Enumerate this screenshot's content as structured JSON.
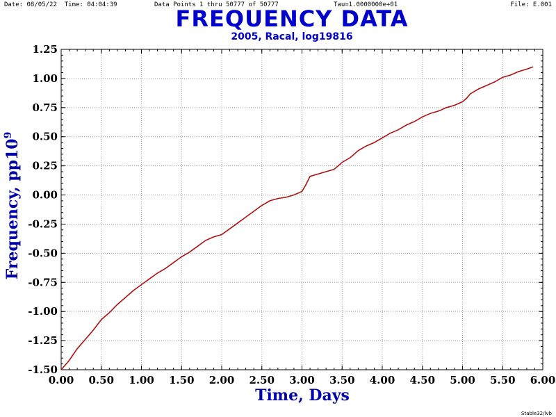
{
  "header": {
    "date": "Date: 08/05/22",
    "time": "Time: 04:04:39",
    "points": "Data Points 1 thru 50777 of 50777",
    "tau": "Tau=1.0000000e+01",
    "file": "File: E.001"
  },
  "footer": "Stable32/lvb",
  "chart_data": {
    "type": "line",
    "title": "FREQUENCY DATA",
    "subtitle": "2005, Racal, log19816",
    "xlabel": "Time, Days",
    "ylabel_base": "Frequency, pp10",
    "ylabel_sup": "9",
    "xlim": [
      0,
      6
    ],
    "ylim": [
      -1.5,
      1.25
    ],
    "grid": true,
    "x_ticks": [
      "0.00",
      "0.50",
      "1.00",
      "1.50",
      "2.00",
      "2.50",
      "3.00",
      "3.50",
      "4.00",
      "4.50",
      "5.00",
      "5.50",
      "6.00"
    ],
    "y_ticks": [
      "1.25",
      "1.00",
      "0.75",
      "0.50",
      "0.25",
      "0.00",
      "-0.25",
      "-0.50",
      "-0.75",
      "-1.00",
      "-1.25",
      "-1.50"
    ],
    "line_color": "#b01010",
    "series": [
      {
        "x": [
          0.0,
          0.1,
          0.2,
          0.3,
          0.4,
          0.5,
          0.6,
          0.7,
          0.8,
          0.9,
          1.0,
          1.1,
          1.2,
          1.3,
          1.4,
          1.5,
          1.6,
          1.7,
          1.8,
          1.9,
          2.0,
          2.1,
          2.2,
          2.3,
          2.4,
          2.5,
          2.6,
          2.7,
          2.8,
          2.9,
          3.0,
          3.05,
          3.1,
          3.2,
          3.3,
          3.4,
          3.5,
          3.6,
          3.7,
          3.8,
          3.9,
          4.0,
          4.1,
          4.2,
          4.3,
          4.4,
          4.5,
          4.6,
          4.7,
          4.8,
          4.9,
          5.0,
          5.05,
          5.1,
          5.2,
          5.3,
          5.4,
          5.5,
          5.6,
          5.7,
          5.8,
          5.88
        ],
        "values": [
          -1.5,
          -1.42,
          -1.32,
          -1.24,
          -1.16,
          -1.07,
          -1.01,
          -0.94,
          -0.88,
          -0.82,
          -0.77,
          -0.72,
          -0.67,
          -0.63,
          -0.58,
          -0.53,
          -0.49,
          -0.44,
          -0.39,
          -0.36,
          -0.34,
          -0.29,
          -0.24,
          -0.19,
          -0.14,
          -0.09,
          -0.05,
          -0.03,
          -0.02,
          0.0,
          0.03,
          0.09,
          0.16,
          0.18,
          0.2,
          0.22,
          0.28,
          0.32,
          0.38,
          0.42,
          0.45,
          0.49,
          0.53,
          0.56,
          0.6,
          0.63,
          0.67,
          0.7,
          0.72,
          0.75,
          0.77,
          0.8,
          0.83,
          0.87,
          0.91,
          0.94,
          0.97,
          1.01,
          1.03,
          1.06,
          1.08,
          1.1
        ]
      }
    ]
  }
}
